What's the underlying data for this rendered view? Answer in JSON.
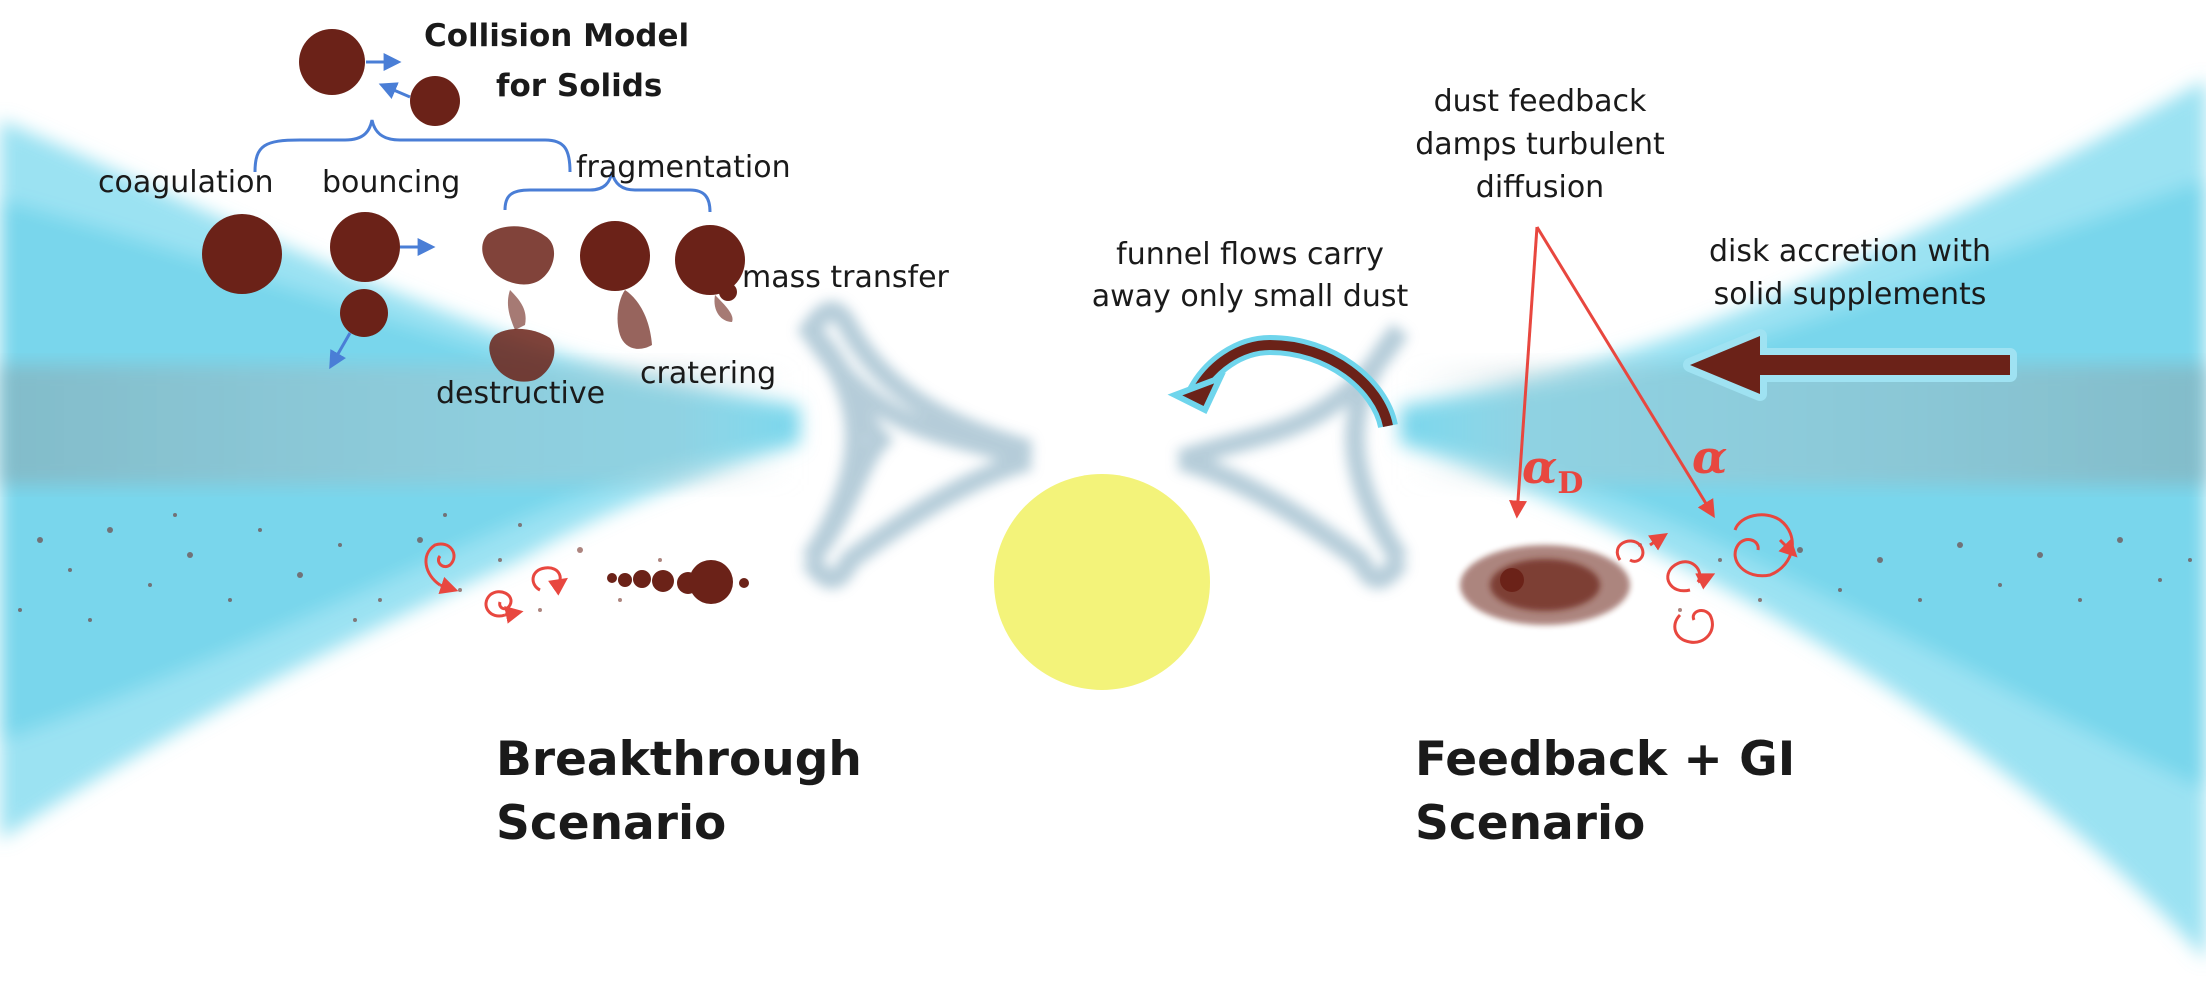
{
  "colors": {
    "disk_cyan": "#5ad0ea",
    "dust_brown": "#6b2218",
    "star_yellow": "#f3f37a",
    "arrow_blue": "#4a7ed6",
    "arrow_red": "#e8473f"
  },
  "collision_model": {
    "title_line1": "Collision Model",
    "title_line2": "for Solids",
    "coagulation": "coagulation",
    "bouncing": "bouncing",
    "fragmentation": "fragmentation",
    "destructive": "destructive",
    "cratering": "cratering",
    "mass_transfer": "mass transfer"
  },
  "annotations": {
    "funnel_line1": "funnel flows carry",
    "funnel_line2": "away only small dust",
    "dust_feedback_line1": "dust feedback",
    "dust_feedback_line2": "damps turbulent",
    "dust_feedback_line3": "diffusion",
    "accretion_line1": "disk accretion with",
    "accretion_line2": "solid supplements"
  },
  "symbols": {
    "alpha_d_base": "α",
    "alpha_d_sub": "D",
    "alpha": "α"
  },
  "scenarios": {
    "left_line1": "Breakthrough",
    "left_line2": "Scenario",
    "right_line1": "Feedback + GI",
    "right_line2": "Scenario"
  },
  "icons": [
    "star",
    "dust-grain",
    "turbulent-eddy",
    "accretion-arrow",
    "funnel-flow-arrow"
  ]
}
